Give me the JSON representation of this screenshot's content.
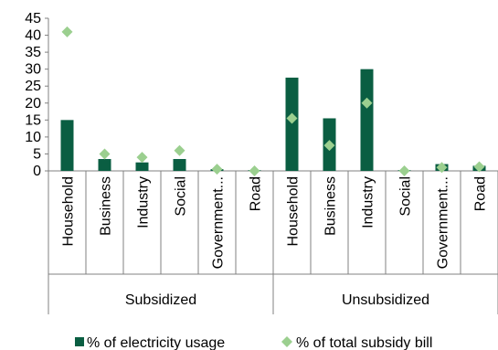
{
  "chart_data": {
    "type": "bar",
    "title": "",
    "xlabel": "",
    "ylabel": "",
    "ylim": [
      0,
      45
    ],
    "yticks": [
      0,
      5,
      10,
      15,
      20,
      25,
      30,
      35,
      40,
      45
    ],
    "grid": false,
    "legend_position": "bottom",
    "groups": [
      {
        "name": "Subsidized",
        "categories": [
          "Household",
          "Business",
          "Industry",
          "Social",
          "Government...",
          "Road"
        ]
      },
      {
        "name": "Unsubsidized",
        "categories": [
          "Household",
          "Business",
          "Industry",
          "Social",
          "Government...",
          "Road"
        ]
      }
    ],
    "series": [
      {
        "name": "% of electricity usage",
        "kind": "bar",
        "color": "#0a5e42",
        "values": [
          15,
          3.5,
          2.5,
          3.5,
          0.5,
          0.2,
          27.5,
          15.5,
          30,
          0.2,
          2,
          1.5
        ]
      },
      {
        "name": "% of total subsidy bill",
        "kind": "marker",
        "marker": "diamond",
        "color": "#9bcf8f",
        "values": [
          41,
          5,
          4,
          6,
          0.5,
          0,
          15.5,
          7.5,
          20,
          0,
          1,
          1.2
        ]
      }
    ]
  }
}
